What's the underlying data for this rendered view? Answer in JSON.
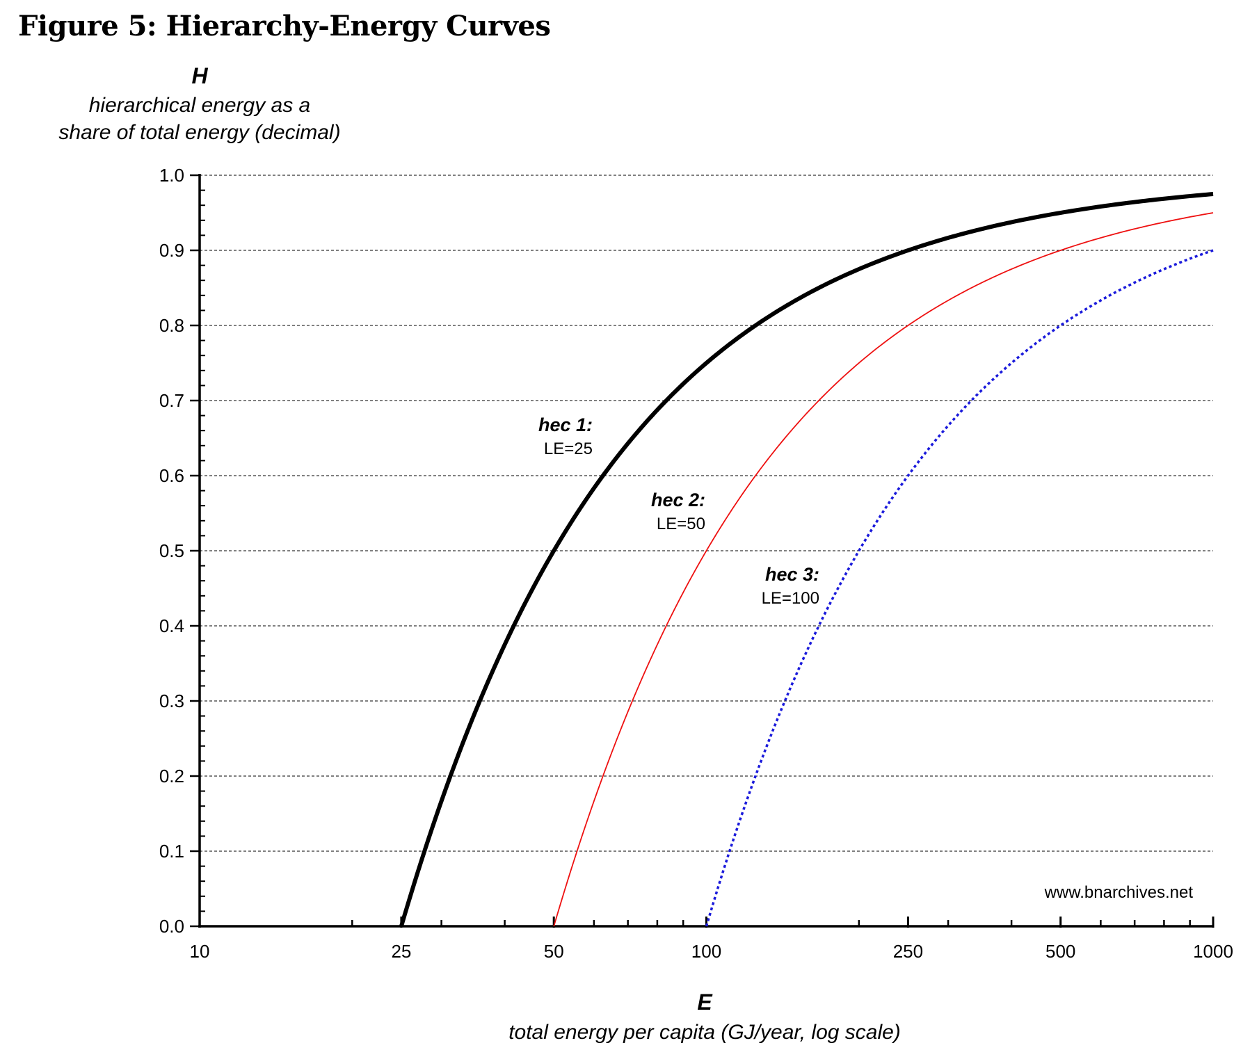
{
  "title": "Figure 5: Hierarchy-Energy Curves",
  "source": "www.bnarchives.net",
  "chart_data": {
    "type": "line",
    "x_scale": "log",
    "xlim": [
      10,
      1000
    ],
    "ylim": [
      0.0,
      1.0
    ],
    "grid": "horizontal dashed",
    "ylabel_symbol": "H",
    "ylabel_lines": [
      "hierarchical energy as a",
      "share of total energy (decimal)"
    ],
    "xlabel_symbol": "E",
    "xlabel": "total energy per capita (GJ/year, log scale)",
    "x_ticks": [
      10,
      25,
      50,
      100,
      250,
      500,
      1000
    ],
    "x_tick_labels": [
      "10",
      "25",
      "50",
      "100",
      "250",
      "500",
      "1000"
    ],
    "y_ticks": [
      0.0,
      0.1,
      0.2,
      0.3,
      0.4,
      0.5,
      0.6,
      0.7,
      0.8,
      0.9,
      1.0
    ],
    "y_tick_labels": [
      "0.0",
      "0.1",
      "0.2",
      "0.3",
      "0.4",
      "0.5",
      "0.6",
      "0.7",
      "0.8",
      "0.9",
      "1.0"
    ],
    "series": [
      {
        "name": "hec 1:",
        "label": "LE=25",
        "color": "#000000",
        "style": "thick solid",
        "x": [
          25,
          27.8,
          31.3,
          35.7,
          41.7,
          50,
          62.5,
          83.3,
          100,
          125,
          166.7,
          250,
          500,
          1000
        ],
        "y": [
          0.0,
          0.1,
          0.2,
          0.3,
          0.4,
          0.5,
          0.6,
          0.7,
          0.75,
          0.8,
          0.85,
          0.9,
          0.95,
          0.975
        ]
      },
      {
        "name": "hec 2:",
        "label": "LE=50",
        "color": "#ee1111",
        "style": "thin solid",
        "x": [
          50,
          55.6,
          62.5,
          71.4,
          83.3,
          100,
          125,
          166.7,
          250,
          333.3,
          500,
          1000
        ],
        "y": [
          0.0,
          0.1,
          0.2,
          0.3,
          0.4,
          0.5,
          0.6,
          0.7,
          0.8,
          0.85,
          0.9,
          0.95
        ]
      },
      {
        "name": "hec 3:",
        "label": "LE=100",
        "color": "#1a1adb",
        "style": "dotted",
        "x": [
          100,
          111.1,
          125,
          142.9,
          166.7,
          200,
          250,
          333.3,
          500,
          666.7,
          1000
        ],
        "y": [
          0.0,
          0.1,
          0.2,
          0.3,
          0.4,
          0.5,
          0.6,
          0.7,
          0.8,
          0.85,
          0.9
        ]
      }
    ]
  }
}
